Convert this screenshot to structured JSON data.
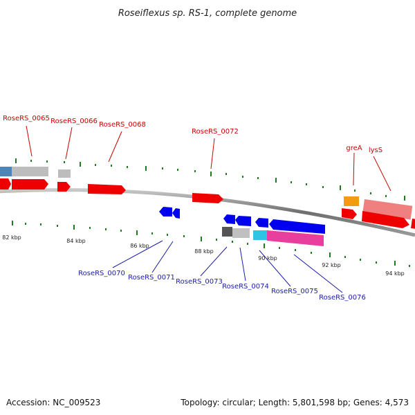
{
  "title": "Roseiflexus sp. RS-1, complete genome",
  "footer": {
    "accession": "Accession: NC_009523",
    "summary": "Topology: circular; Length: 5,801,598 bp; Genes: 4,573"
  },
  "colors": {
    "forward_label": "#cc0000",
    "reverse_label": "#1a1aaa",
    "tick_dot": "#1f7a1f",
    "backbone": "#808080"
  },
  "scale": {
    "unit": "kbp",
    "ticks": [
      {
        "label": "82 kbp"
      },
      {
        "label": "84 kbp"
      },
      {
        "label": "86 kbp"
      },
      {
        "label": "88 kbp"
      },
      {
        "label": "90 kbp"
      },
      {
        "label": "92 kbp"
      },
      {
        "label": "94 kbp"
      }
    ]
  },
  "genes": {
    "forward": [
      {
        "name": "RoseRS_0065"
      },
      {
        "name": "RoseRS_0066"
      },
      {
        "name": "RoseRS_0068"
      },
      {
        "name": "RoseRS_0072"
      },
      {
        "name": "greA"
      },
      {
        "name": "lysS"
      }
    ],
    "reverse": [
      {
        "name": "RoseRS_0070"
      },
      {
        "name": "RoseRS_0071"
      },
      {
        "name": "RoseRS_0073"
      },
      {
        "name": "RoseRS_0074"
      },
      {
        "name": "RoseRS_0075"
      },
      {
        "name": "RoseRS_0076"
      }
    ]
  }
}
